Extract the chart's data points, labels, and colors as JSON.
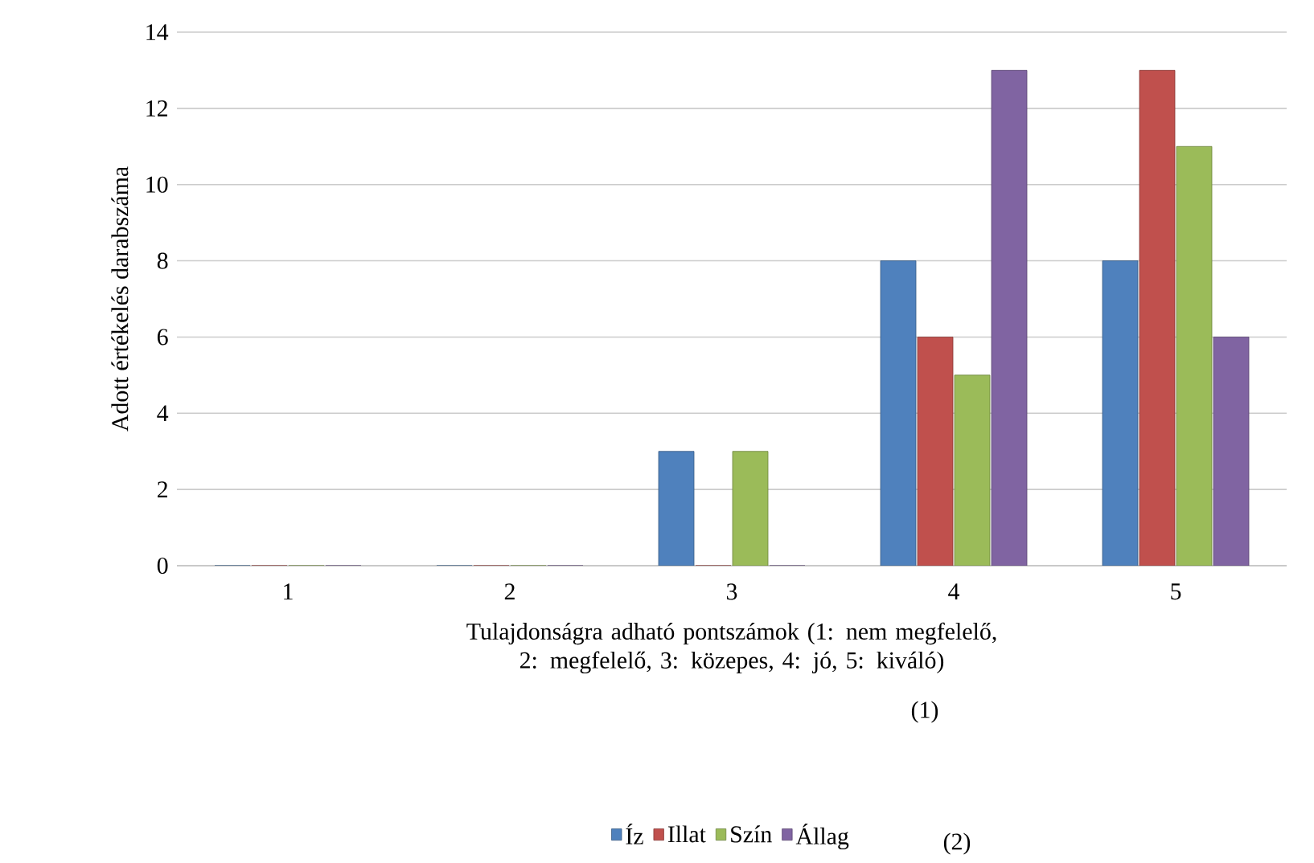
{
  "chart_data": {
    "type": "bar",
    "xlabel": "Tulajdonságra adható pontszámok (1: nem megfelelő, 2: megfelelő, 3: közepes, 4: jó, 5: kiváló)",
    "ylabel": "Adott értékelés darabszáma",
    "categories": [
      "1",
      "2",
      "3",
      "4",
      "5"
    ],
    "series": [
      {
        "name": "Íz",
        "color": "#4f81bd",
        "values": [
          0,
          0,
          3,
          8,
          8
        ]
      },
      {
        "name": "Illat",
        "color": "#c0504d",
        "values": [
          0,
          0,
          0,
          6,
          13
        ]
      },
      {
        "name": "Szín",
        "color": "#9bbb59",
        "values": [
          0,
          0,
          3,
          5,
          11
        ]
      },
      {
        "name": "Állag",
        "color": "#8064a2",
        "values": [
          0,
          0,
          0,
          13,
          6
        ]
      }
    ],
    "ylim": [
      0,
      14
    ],
    "yticks": [
      0,
      2,
      4,
      6,
      8,
      10,
      12,
      14
    ],
    "grid": "y",
    "legend": "bottom",
    "annotations": [
      "(1)",
      "(2)"
    ]
  }
}
